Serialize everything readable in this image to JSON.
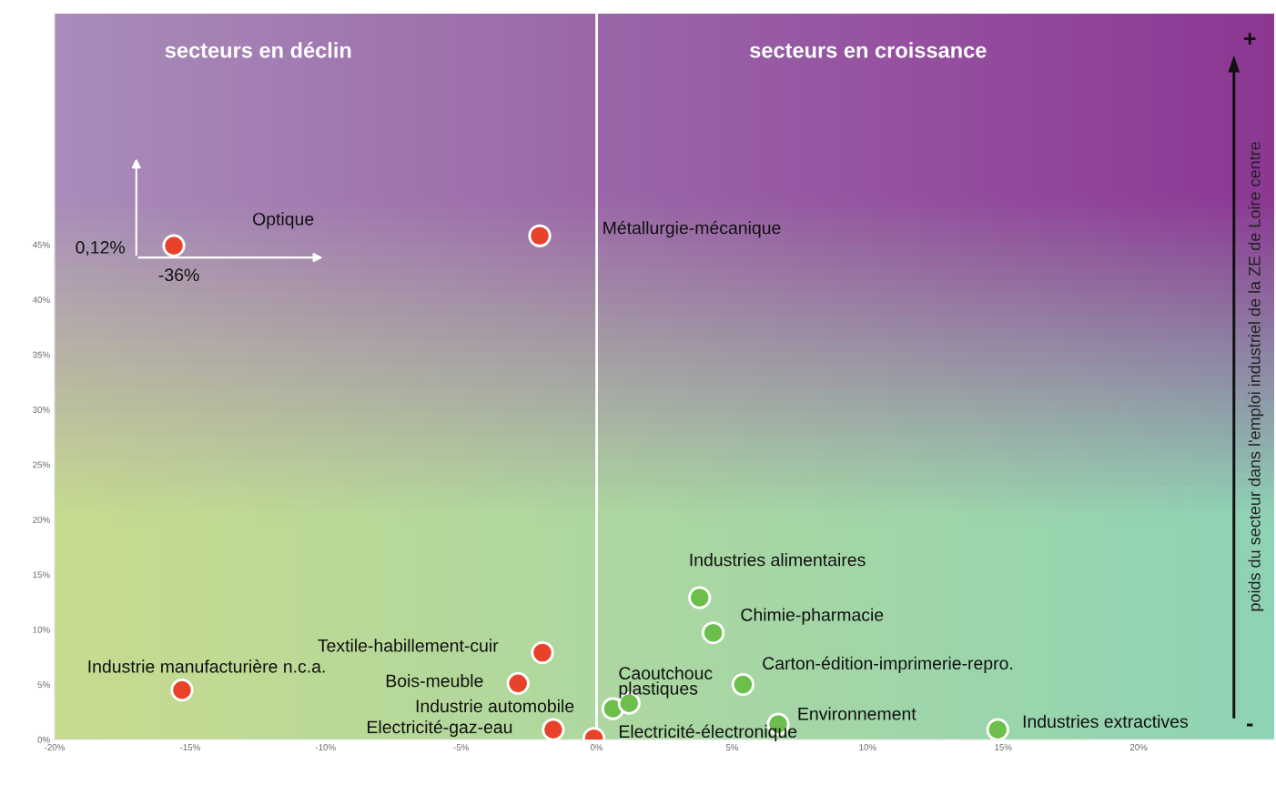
{
  "chart_data": {
    "type": "scatter",
    "xlim": [
      -20,
      25
    ],
    "xticks": [
      {
        "value": -20,
        "label": "-20%"
      },
      {
        "value": -15,
        "label": "-15%"
      },
      {
        "value": -10,
        "label": "-10%"
      },
      {
        "value": -5,
        "label": "-5%"
      },
      {
        "value": 0,
        "label": "0%"
      },
      {
        "value": 5,
        "label": "5%"
      },
      {
        "value": 10,
        "label": "10%"
      },
      {
        "value": 15,
        "label": "15%"
      },
      {
        "value": 20,
        "label": "20%"
      }
    ],
    "ylim": [
      0,
      66
    ],
    "yticks": [
      {
        "value": 0,
        "label": "0%"
      },
      {
        "value": 5,
        "label": "5%"
      },
      {
        "value": 10,
        "label": "10%"
      },
      {
        "value": 15,
        "label": "15%"
      },
      {
        "value": 20,
        "label": "20%"
      },
      {
        "value": 25,
        "label": "25%"
      },
      {
        "value": 30,
        "label": "30%"
      },
      {
        "value": 35,
        "label": "35%"
      },
      {
        "value": 40,
        "label": "40%"
      },
      {
        "value": 45,
        "label": "45%"
      }
    ],
    "ylabel": "poids du secteur dans l'emploi industriel de la ZE de Loire centre",
    "grid": false,
    "legend": false,
    "marker": "circle",
    "series": [
      {
        "color": "#e8432a",
        "x": [
          -15.6,
          -2.1,
          -15.3,
          -2.0,
          -2.9,
          -1.6,
          -0.1
        ],
        "values": [
          44.9,
          45.8,
          4.5,
          7.9,
          5.1,
          0.9,
          0.1
        ]
      },
      {
        "color": "#6cbf4a",
        "x": [
          0.6,
          1.2,
          3.8,
          4.3,
          5.4,
          6.7,
          14.8
        ],
        "values": [
          2.8,
          3.3,
          12.9,
          9.7,
          5.0,
          1.4,
          0.9
        ]
      }
    ],
    "ref_lines": [
      {
        "axis": "x",
        "value": 0,
        "color": "#ffffff"
      }
    ],
    "annotations": [
      "secteurs en déclin",
      "secteurs en croissance",
      "Optique",
      "0,12%",
      "-36%",
      "Métallurgie-mécanique",
      {
        "text": "Industrie manufacturière n.c.a.",
        "x": -15.3,
        "y": 4.5
      },
      {
        "text": "Textile-habillement-cuir",
        "x": -2.0,
        "y": 7.9
      },
      {
        "text": "Bois-meuble",
        "x": -2.9,
        "y": 5.1
      },
      {
        "text": "Industrie automobile",
        "x": 0.6,
        "y": 2.8
      },
      {
        "text": "Caoutchouc\nplastiques",
        "x": 1.2,
        "y": 3.3
      },
      {
        "text": "Electricité-gaz-eau",
        "x": -1.6,
        "y": 0.9
      },
      {
        "text": "Electricité-électronique",
        "x": -0.1,
        "y": 0.1
      },
      {
        "text": "Industries alimentaires",
        "x": 3.8,
        "y": 12.9
      },
      {
        "text": "Chimie-pharmacie",
        "x": 4.3,
        "y": 9.7
      },
      {
        "text": "Carton-édition-imprimerie-repro.",
        "x": 5.4,
        "y": 5.0
      },
      {
        "text": "Environnement",
        "x": 6.7,
        "y": 1.4
      },
      {
        "text": "Industries extractives",
        "x": 14.8,
        "y": 0.9
      },
      "+",
      "-"
    ]
  }
}
